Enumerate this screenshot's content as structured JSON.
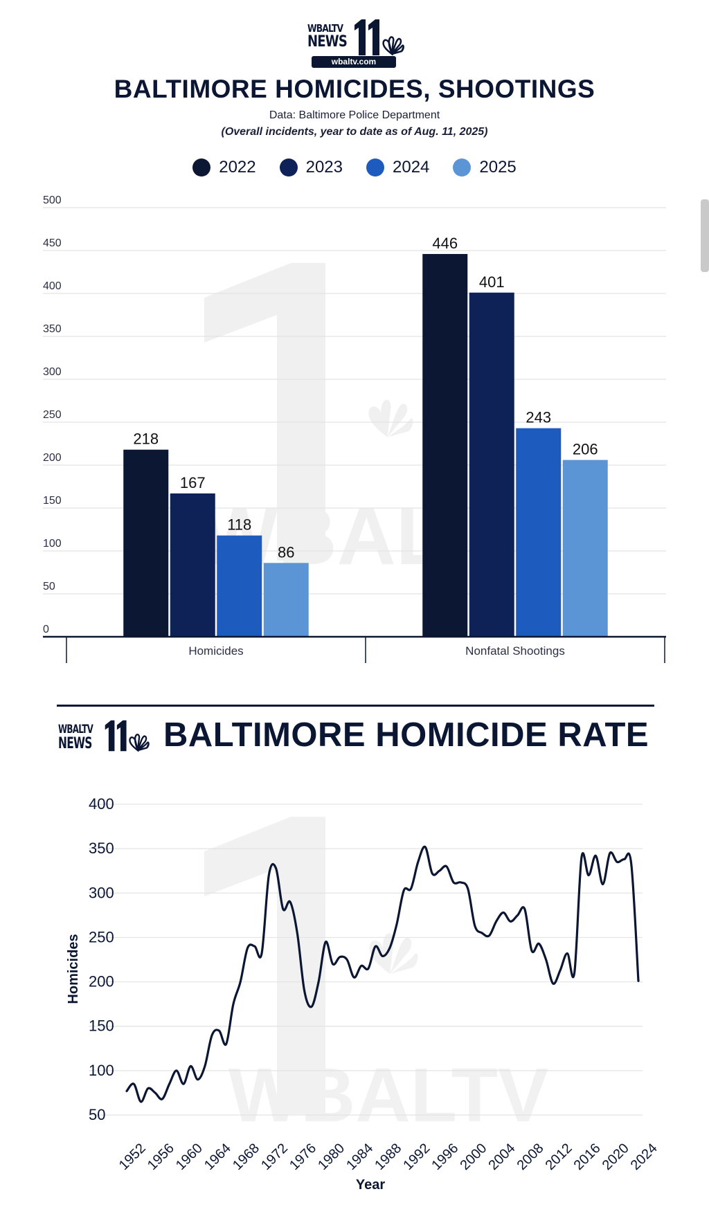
{
  "logo": {
    "line1": "WBALTV",
    "line2": "NEWS",
    "number": "11",
    "url": "wbaltv.com"
  },
  "header": {
    "title": "BALTIMORE HOMICIDES, SHOOTINGS",
    "source": "Data: Baltimore Police Department",
    "note": "(Overall incidents, year to date as of Aug. 11, 2025)"
  },
  "watermark": {
    "text": "WBAL"
  },
  "watermark2": {
    "text": "WBALTV"
  },
  "colors": {
    "2022": "#0b1733",
    "2023": "#0e2258",
    "2024": "#1e5bbf",
    "2025": "#5b95d6",
    "line": "#0b1633",
    "grid": "#e3e3e3"
  },
  "chart_data": [
    {
      "type": "bar",
      "title": "BALTIMORE HOMICIDES, SHOOTINGS",
      "categories": [
        "Homicides",
        "Nonfatal Shootings"
      ],
      "series": [
        {
          "name": "2022",
          "values": [
            218,
            446
          ]
        },
        {
          "name": "2023",
          "values": [
            167,
            401
          ]
        },
        {
          "name": "2024",
          "values": [
            118,
            243
          ]
        },
        {
          "name": "2025",
          "values": [
            86,
            206
          ]
        }
      ],
      "ylim": [
        0,
        500
      ],
      "yticks": [
        0,
        50,
        100,
        150,
        200,
        250,
        300,
        350,
        400,
        450,
        500
      ],
      "grid": true,
      "legend": "top-center",
      "data_labels": true
    },
    {
      "type": "line",
      "title": "BALTIMORE HOMICIDE RATE",
      "xlabel": "Year",
      "ylabel": "Homicides",
      "ylim": [
        50,
        400
      ],
      "yticks": [
        50,
        100,
        150,
        200,
        250,
        300,
        350,
        400
      ],
      "xticks": [
        1952,
        1956,
        1960,
        1964,
        1968,
        1972,
        1976,
        1980,
        1984,
        1988,
        1992,
        1996,
        2000,
        2004,
        2008,
        2012,
        2016,
        2020,
        2024
      ],
      "grid": true,
      "x": [
        1951,
        1952,
        1953,
        1954,
        1955,
        1956,
        1957,
        1958,
        1959,
        1960,
        1961,
        1962,
        1963,
        1964,
        1965,
        1966,
        1967,
        1968,
        1969,
        1970,
        1971,
        1972,
        1973,
        1974,
        1975,
        1976,
        1977,
        1978,
        1979,
        1980,
        1981,
        1982,
        1983,
        1984,
        1985,
        1986,
        1987,
        1988,
        1989,
        1990,
        1991,
        1992,
        1993,
        1994,
        1995,
        1996,
        1997,
        1998,
        1999,
        2000,
        2001,
        2002,
        2003,
        2004,
        2005,
        2006,
        2007,
        2008,
        2009,
        2010,
        2011,
        2012,
        2013,
        2014,
        2015,
        2016,
        2017,
        2018,
        2019,
        2020,
        2021,
        2022,
        2023
      ],
      "values": [
        77,
        85,
        65,
        80,
        75,
        68,
        85,
        100,
        85,
        105,
        90,
        105,
        140,
        145,
        130,
        175,
        200,
        238,
        240,
        232,
        320,
        328,
        282,
        290,
        255,
        190,
        172,
        200,
        245,
        220,
        228,
        225,
        205,
        218,
        215,
        240,
        229,
        238,
        265,
        303,
        305,
        335,
        352,
        322,
        325,
        330,
        312,
        312,
        305,
        263,
        255,
        252,
        268,
        278,
        268,
        275,
        282,
        235,
        243,
        225,
        198,
        213,
        232,
        210,
        340,
        320,
        342,
        310,
        345,
        335,
        338,
        333,
        201
      ]
    }
  ]
}
